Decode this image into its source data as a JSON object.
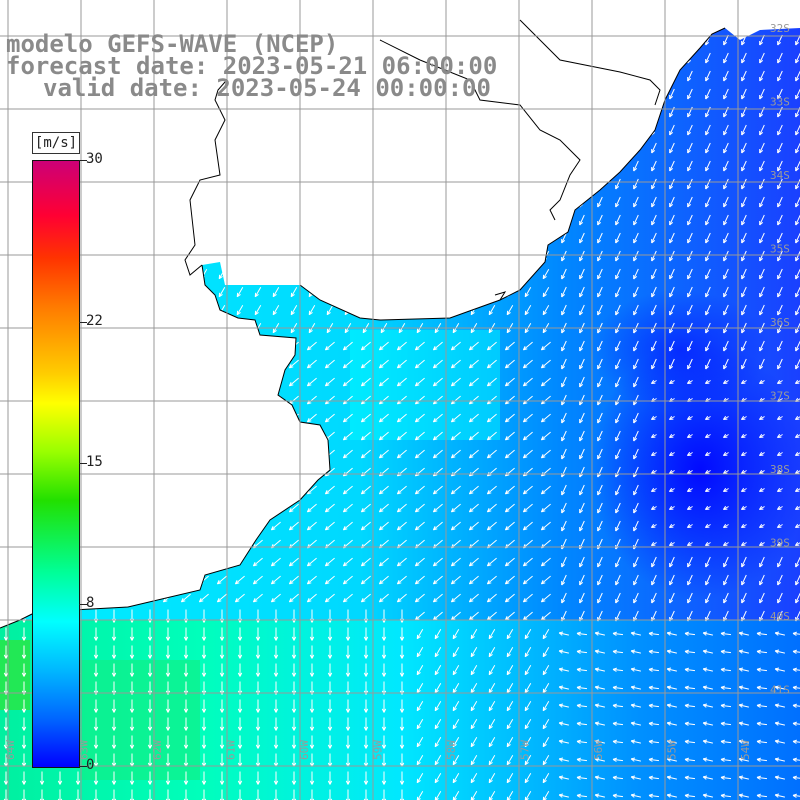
{
  "title": {
    "line1": "modelo GEFS-WAVE (NCEP)",
    "line2": "forecast date: 2023-05-21 06:00:00",
    "line3": "valid date: 2023-05-24 00:00:00"
  },
  "colorbar": {
    "units": "[m/s]",
    "ticks": [
      {
        "label": "30",
        "value": 30
      },
      {
        "label": "22",
        "value": 22
      },
      {
        "label": "15",
        "value": 15
      },
      {
        "label": "8",
        "value": 8
      },
      {
        "label": "0",
        "value": 0
      }
    ],
    "range": [
      0,
      30
    ]
  },
  "map": {
    "lat_labels": [
      "32S",
      "33S",
      "34S",
      "35S",
      "36S",
      "37S",
      "38S",
      "39S",
      "40S",
      "41S"
    ],
    "lon_labels": [
      "64W",
      "63W",
      "62W",
      "61W",
      "60W",
      "59W",
      "58W",
      "57W",
      "56W",
      "55W",
      "54W"
    ],
    "field": "wind speed",
    "colors": {
      "ocean_high": "#00ff99",
      "ocean_mid": "#00ffff",
      "ocean_low": "#0000ff",
      "land": "#ffffff",
      "coast": "#000000",
      "grid": "#999999",
      "arrow": "#ffffff"
    }
  }
}
